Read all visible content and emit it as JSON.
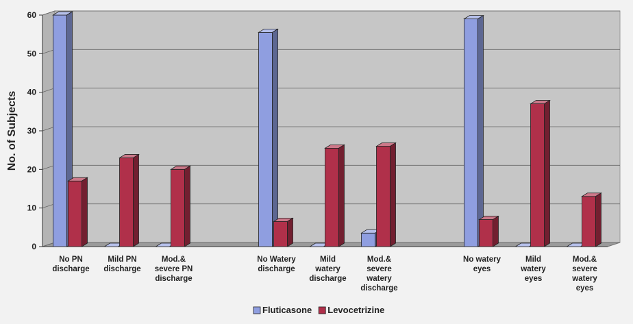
{
  "chart_data": {
    "type": "bar",
    "style": "3d-clustered-column",
    "ylabel": "No. of Subjects",
    "xlabel": "",
    "ylim": [
      0,
      60
    ],
    "yticks": [
      0,
      10,
      20,
      30,
      40,
      50,
      60
    ],
    "grid": true,
    "legend_position": "bottom-center",
    "categories": [
      "No PN discharge",
      "Mild PN discharge",
      "Mod.& severe PN discharge",
      "No Watery discharge",
      "Mild watery discharge",
      "Mod.& severe watery discharge",
      "No watery eyes",
      "Mild watery eyes",
      "Mod.& severe watery eyes"
    ],
    "category_lines": [
      [
        "No PN",
        "discharge"
      ],
      [
        "Mild PN",
        "discharge"
      ],
      [
        "Mod.&",
        "severe PN",
        "discharge"
      ],
      [
        "No Watery",
        "discharge"
      ],
      [
        "Mild",
        "watery",
        "discharge"
      ],
      [
        "Mod.&",
        "severe",
        "watery",
        "discharge"
      ],
      [
        "No watery",
        "eyes"
      ],
      [
        "Mild",
        "watery",
        "eyes"
      ],
      [
        "Mod.&",
        "severe",
        "watery",
        "eyes"
      ]
    ],
    "groups": [
      [
        0,
        1,
        2
      ],
      [
        3,
        4,
        5
      ],
      [
        6,
        7,
        8
      ]
    ],
    "series": [
      {
        "name": "Fluticasone",
        "color": "#8f9ee0",
        "values": [
          60,
          0,
          0,
          55.5,
          0,
          3.5,
          59,
          0,
          0
        ]
      },
      {
        "name": "Levocetrizine",
        "color": "#b0304a",
        "values": [
          17,
          23,
          20,
          6.5,
          25.5,
          26,
          7,
          37,
          13
        ]
      }
    ]
  }
}
